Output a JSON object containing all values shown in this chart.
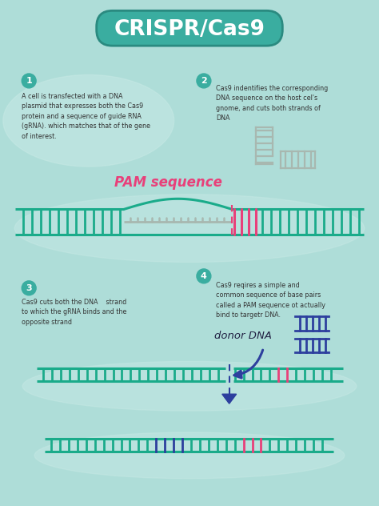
{
  "bg_color": "#aeddd8",
  "teal": "#3aada0",
  "dark_teal": "#2a8a80",
  "green_dna": "#1aab8a",
  "pink": "#e8407a",
  "blue_dna": "#2d3f9e",
  "gray_dna": "#a8b8b0",
  "white": "#ffffff",
  "title": "CRISPR/Cas9",
  "step1_text": "A cell is transfected with a DNA\nplasmid that expresses both the Cas9\nprotein and a sequence of guide RNA\n(gRNA). which matches that of the gene\nof interest.",
  "step2_text": "Cas9 indentifies the corresponding\nDNA sequence on the host cel's\ngnome, and cuts both strands of\nDNA",
  "step3_text": "Cas9 cuts both the DNA    strand\nto which the gRNA binds and the\nopposite strand",
  "step4_text": "Cas9 reqires a simple and\ncommon sequence of base pairs\ncalled a PAM sequence ot actually\nbind to targetr DNA.",
  "pam_label": "PAM sequence",
  "donor_label": "donor DNA"
}
